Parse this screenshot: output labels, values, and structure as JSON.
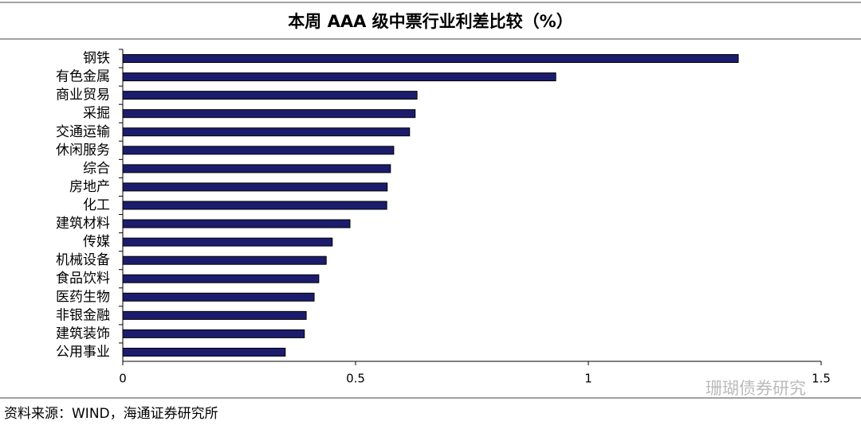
{
  "chart_data": {
    "type": "bar",
    "orientation": "horizontal",
    "title": "本周 AAA 级中票行业利差比较（%）",
    "categories": [
      "钢铁",
      "有色金属",
      "商业贸易",
      "采掘",
      "交通运输",
      "休闲服务",
      "综合",
      "房地产",
      "化工",
      "建筑材料",
      "传媒",
      "机械设备",
      "食品饮料",
      "医药生物",
      "非银金融",
      "建筑装饰",
      "公用事业"
    ],
    "values": [
      1.322,
      0.93,
      0.632,
      0.628,
      0.616,
      0.582,
      0.575,
      0.568,
      0.567,
      0.488,
      0.45,
      0.437,
      0.421,
      0.411,
      0.394,
      0.39,
      0.349
    ],
    "color": "#1c1c6e",
    "xlim": [
      0,
      1.5
    ],
    "xticks": [
      0,
      0.5,
      1,
      1.5
    ],
    "source": "资料来源：WIND，海通证券研究所",
    "watermark": "珊瑚债券研究"
  }
}
